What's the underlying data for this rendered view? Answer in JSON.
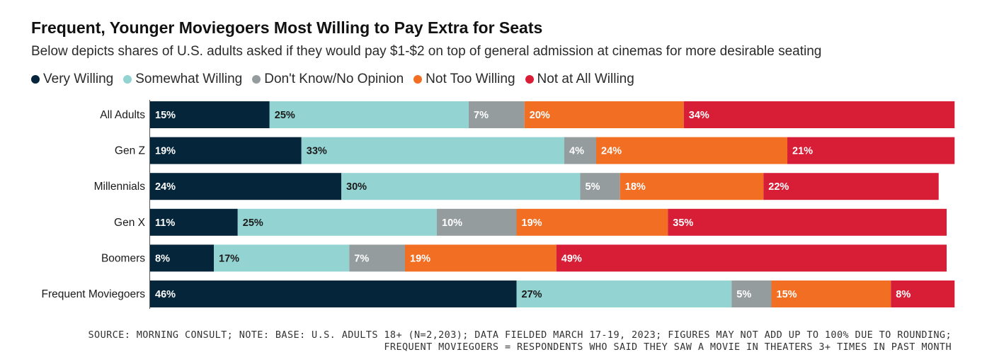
{
  "chart_data": {
    "type": "bar",
    "orientation": "horizontal",
    "stacked": true,
    "title": "Frequent, Younger Moviegoers Most Willing to Pay Extra for Seats",
    "subtitle": "Below depicts shares of U.S. adults asked if they would pay $1-$2 on top of general admission at cinemas for more desirable seating",
    "categories": [
      "All Adults",
      "Gen Z",
      "Millennials",
      "Gen X",
      "Boomers",
      "Frequent Moviegoers"
    ],
    "series": [
      {
        "name": "Very Willing",
        "color": "#04253a",
        "label_color": "#ffffff",
        "values": [
          15,
          19,
          24,
          11,
          8,
          46
        ]
      },
      {
        "name": "Somewhat Willing",
        "color": "#93d4d3",
        "label_color": "#1a1a1a",
        "values": [
          25,
          33,
          30,
          25,
          17,
          27
        ]
      },
      {
        "name": "Don't Know/No Opinion",
        "color": "#959c9e",
        "label_color": "#ffffff",
        "values": [
          7,
          4,
          5,
          10,
          7,
          5
        ]
      },
      {
        "name": "Not Too Willing",
        "color": "#f16e23",
        "label_color": "#ffffff",
        "values": [
          20,
          24,
          18,
          19,
          19,
          15
        ]
      },
      {
        "name": "Not at All Willing",
        "color": "#d81e37",
        "label_color": "#ffffff",
        "values": [
          34,
          21,
          22,
          35,
          49,
          8
        ]
      }
    ],
    "value_suffix": "%",
    "legend_position": "top-left",
    "grid": false
  },
  "footer": {
    "line1": "SOURCE: MORNING CONSULT; NOTE: BASE: U.S. ADULTS 18+ (N=2,203); DATA FIELDED MARCH 17-19, 2023; FIGURES MAY NOT ADD UP TO 100% DUE TO ROUNDING;",
    "line2": "FREQUENT MOVIEGOERS = RESPONDENTS WHO SAID THEY SAW A MOVIE IN THEATERS 3+ TIMES IN PAST MONTH"
  }
}
